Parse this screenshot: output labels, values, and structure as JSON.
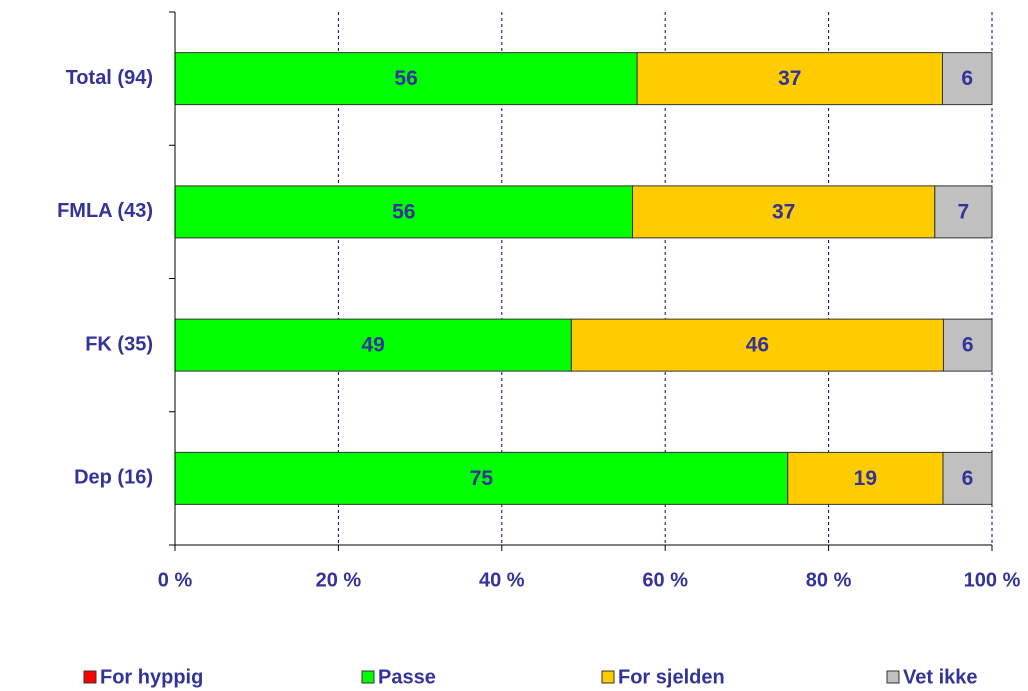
{
  "chart_data": {
    "type": "bar",
    "orientation": "horizontal",
    "stacking": "percent",
    "categories": [
      "Total (94)",
      "FMLA (43)",
      "FK (35)",
      "Dep (16)"
    ],
    "series": [
      {
        "name": "For hyppig",
        "color": "#ff0000",
        "values": [
          0,
          0,
          0,
          0
        ]
      },
      {
        "name": "Passe",
        "color": "#00ff00",
        "values": [
          56,
          56,
          49,
          75
        ]
      },
      {
        "name": "For sjelden",
        "color": "#ffcc00",
        "values": [
          37,
          37,
          46,
          19
        ]
      },
      {
        "name": "Vet ikke",
        "color": "#c0c0c0",
        "values": [
          6,
          7,
          6,
          6
        ]
      }
    ],
    "xlim": [
      0,
      100
    ],
    "xticks": [
      {
        "value": 0,
        "label": "0 %"
      },
      {
        "value": 20,
        "label": "20 %"
      },
      {
        "value": 40,
        "label": "40 %"
      },
      {
        "value": 60,
        "label": "60 %"
      },
      {
        "value": 80,
        "label": "80 %"
      },
      {
        "value": 100,
        "label": "100 %"
      }
    ],
    "grid": true,
    "legend": "bottom"
  }
}
